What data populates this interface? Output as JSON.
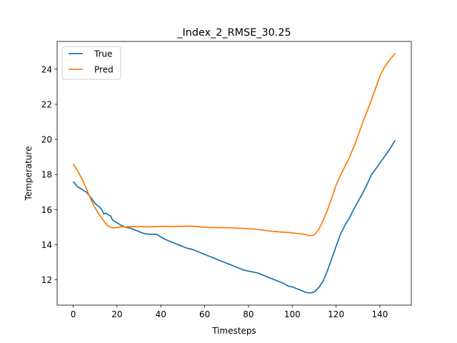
{
  "chart_data": {
    "type": "line",
    "title": "_Index_2_RMSE_30.25",
    "xlabel": "Timesteps",
    "ylabel": "Temperature",
    "xlim": [
      -7.35,
      154.35
    ],
    "ylim": [
      10.56,
      25.58
    ],
    "xticks": [
      0,
      20,
      40,
      60,
      80,
      100,
      120,
      140
    ],
    "yticks": [
      12,
      14,
      16,
      18,
      20,
      22,
      24
    ],
    "grid": false,
    "legend_position": "top-left",
    "series": [
      {
        "name": "True",
        "color": "#1f77b4",
        "points": [
          [
            0,
            17.6
          ],
          [
            2,
            17.3
          ],
          [
            4,
            17.15
          ],
          [
            6,
            17.0
          ],
          [
            8,
            16.7
          ],
          [
            10,
            16.35
          ],
          [
            12,
            16.15
          ],
          [
            13,
            16.0
          ],
          [
            14,
            15.75
          ],
          [
            15,
            15.8
          ],
          [
            16,
            15.7
          ],
          [
            17,
            15.65
          ],
          [
            18,
            15.4
          ],
          [
            20,
            15.25
          ],
          [
            22,
            15.1
          ],
          [
            24,
            15.0
          ],
          [
            26,
            14.95
          ],
          [
            28,
            14.85
          ],
          [
            30,
            14.75
          ],
          [
            32,
            14.65
          ],
          [
            34,
            14.6
          ],
          [
            36,
            14.6
          ],
          [
            38,
            14.6
          ],
          [
            40,
            14.45
          ],
          [
            42,
            14.3
          ],
          [
            44,
            14.2
          ],
          [
            46,
            14.1
          ],
          [
            48,
            14.0
          ],
          [
            50,
            13.9
          ],
          [
            52,
            13.8
          ],
          [
            54,
            13.75
          ],
          [
            56,
            13.65
          ],
          [
            58,
            13.55
          ],
          [
            60,
            13.45
          ],
          [
            62,
            13.35
          ],
          [
            64,
            13.25
          ],
          [
            66,
            13.15
          ],
          [
            68,
            13.05
          ],
          [
            70,
            12.95
          ],
          [
            72,
            12.85
          ],
          [
            74,
            12.75
          ],
          [
            76,
            12.65
          ],
          [
            78,
            12.55
          ],
          [
            80,
            12.5
          ],
          [
            82,
            12.45
          ],
          [
            84,
            12.4
          ],
          [
            86,
            12.3
          ],
          [
            88,
            12.2
          ],
          [
            90,
            12.1
          ],
          [
            92,
            12.0
          ],
          [
            94,
            11.9
          ],
          [
            96,
            11.8
          ],
          [
            98,
            11.65
          ],
          [
            100,
            11.6
          ],
          [
            102,
            11.5
          ],
          [
            104,
            11.4
          ],
          [
            106,
            11.3
          ],
          [
            108,
            11.25
          ],
          [
            110,
            11.3
          ],
          [
            112,
            11.55
          ],
          [
            114,
            11.9
          ],
          [
            116,
            12.5
          ],
          [
            118,
            13.2
          ],
          [
            120,
            13.9
          ],
          [
            122,
            14.6
          ],
          [
            124,
            15.1
          ],
          [
            126,
            15.5
          ],
          [
            128,
            16.0
          ],
          [
            130,
            16.45
          ],
          [
            132,
            16.9
          ],
          [
            134,
            17.4
          ],
          [
            136,
            17.95
          ],
          [
            138,
            18.3
          ],
          [
            140,
            18.65
          ],
          [
            142,
            19.0
          ],
          [
            144,
            19.35
          ],
          [
            146,
            19.75
          ],
          [
            147,
            19.95
          ]
        ]
      },
      {
        "name": "Pred",
        "color": "#ff7f0e",
        "points": [
          [
            0,
            18.6
          ],
          [
            2,
            18.2
          ],
          [
            4,
            17.75
          ],
          [
            6,
            17.2
          ],
          [
            8,
            16.6
          ],
          [
            10,
            16.1
          ],
          [
            12,
            15.7
          ],
          [
            14,
            15.35
          ],
          [
            16,
            15.05
          ],
          [
            18,
            14.95
          ],
          [
            20,
            14.98
          ],
          [
            22,
            15.02
          ],
          [
            24,
            15.03
          ],
          [
            26,
            15.03
          ],
          [
            28,
            15.03
          ],
          [
            30,
            15.03
          ],
          [
            34,
            15.02
          ],
          [
            38,
            15.03
          ],
          [
            42,
            15.05
          ],
          [
            46,
            15.04
          ],
          [
            50,
            15.05
          ],
          [
            54,
            15.06
          ],
          [
            58,
            15.02
          ],
          [
            62,
            14.98
          ],
          [
            66,
            14.98
          ],
          [
            70,
            14.97
          ],
          [
            74,
            14.95
          ],
          [
            78,
            14.93
          ],
          [
            82,
            14.9
          ],
          [
            86,
            14.85
          ],
          [
            90,
            14.78
          ],
          [
            94,
            14.73
          ],
          [
            98,
            14.7
          ],
          [
            102,
            14.65
          ],
          [
            106,
            14.58
          ],
          [
            108,
            14.52
          ],
          [
            110,
            14.55
          ],
          [
            112,
            14.85
          ],
          [
            114,
            15.35
          ],
          [
            116,
            15.95
          ],
          [
            118,
            16.65
          ],
          [
            120,
            17.4
          ],
          [
            122,
            17.95
          ],
          [
            124,
            18.45
          ],
          [
            126,
            18.95
          ],
          [
            128,
            19.55
          ],
          [
            130,
            20.2
          ],
          [
            132,
            20.9
          ],
          [
            134,
            21.55
          ],
          [
            136,
            22.2
          ],
          [
            138,
            22.9
          ],
          [
            140,
            23.6
          ],
          [
            142,
            24.1
          ],
          [
            144,
            24.45
          ],
          [
            146,
            24.75
          ],
          [
            147,
            24.9
          ]
        ]
      }
    ]
  }
}
